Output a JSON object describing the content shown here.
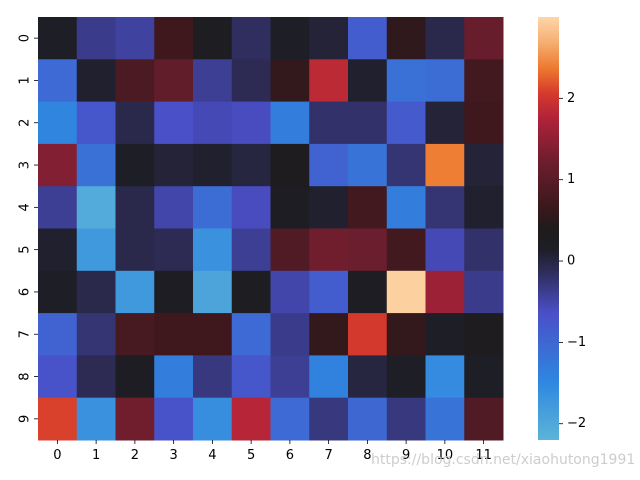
{
  "chart_data": {
    "type": "heatmap",
    "colormap": "icefire",
    "x_labels": [
      "0",
      "1",
      "2",
      "3",
      "4",
      "5",
      "6",
      "7",
      "8",
      "9",
      "10",
      "11"
    ],
    "y_labels": [
      "0",
      "1",
      "2",
      "3",
      "4",
      "5",
      "6",
      "7",
      "8",
      "9"
    ],
    "values": [
      [
        0.15,
        -0.35,
        -0.45,
        0.7,
        0.25,
        -0.15,
        0.15,
        0.05,
        -0.85,
        0.55,
        -0.05,
        1.15
      ],
      [
        -1.05,
        0.1,
        0.85,
        1.1,
        -0.4,
        -0.1,
        0.6,
        1.85,
        0.1,
        -1.15,
        -1.1,
        0.75
      ],
      [
        -1.45,
        -0.75,
        -0.05,
        -0.65,
        -0.55,
        -0.6,
        -1.35,
        -0.2,
        -0.2,
        -0.8,
        0.05,
        0.7
      ],
      [
        1.4,
        -1.15,
        0.15,
        0.05,
        0.1,
        0.0,
        0.3,
        -0.95,
        -1.2,
        -0.25,
        2.4,
        0.05
      ],
      [
        -0.4,
        -2.05,
        -0.05,
        -0.5,
        -1.1,
        -0.6,
        0.2,
        0.1,
        0.75,
        -1.35,
        -0.25,
        0.1
      ],
      [
        0.1,
        -1.75,
        -0.05,
        -0.1,
        -1.65,
        -0.4,
        0.9,
        1.25,
        1.2,
        0.75,
        -0.55,
        -0.2
      ],
      [
        0.15,
        -0.05,
        -1.75,
        0.2,
        -1.95,
        0.25,
        -0.5,
        -0.85,
        0.2,
        2.95,
        1.6,
        -0.35
      ],
      [
        -0.95,
        -0.25,
        0.8,
        0.7,
        0.7,
        -1.05,
        -0.35,
        0.6,
        2.05,
        0.6,
        0.15,
        0.3
      ],
      [
        -0.7,
        -0.1,
        0.2,
        -1.35,
        -0.3,
        -0.75,
        -0.4,
        -1.4,
        0.0,
        0.15,
        -1.55,
        0.15
      ],
      [
        2.1,
        -1.65,
        1.25,
        -0.7,
        -1.6,
        1.8,
        -1.05,
        -0.3,
        -1.0,
        -0.3,
        -1.2,
        0.9
      ]
    ],
    "colorbar": {
      "vmin": -2.2,
      "vmax": 3.0,
      "ticks": [
        -2,
        -1,
        0,
        1,
        2
      ],
      "tick_labels": [
        "−2",
        "−1",
        "0",
        "1",
        "2"
      ]
    },
    "title": "",
    "xlabel": "",
    "ylabel": ""
  },
  "watermark": "https://blog.csdn.net/xiaohutong1991"
}
